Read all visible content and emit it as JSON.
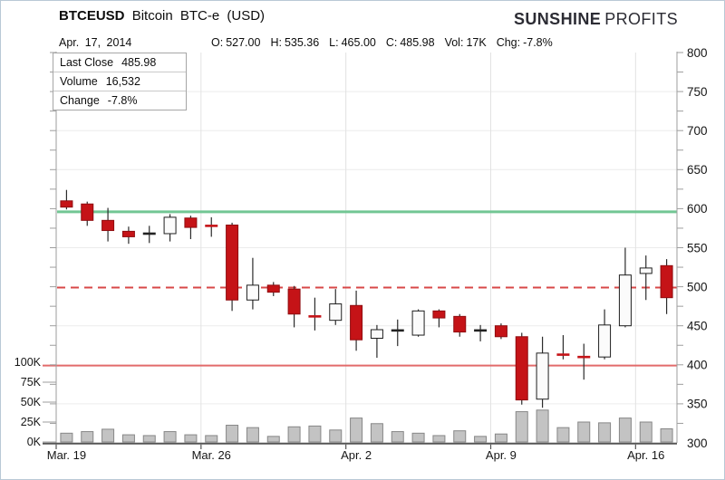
{
  "header": {
    "symbol": "BTCEUSD",
    "title_rest": "Bitcoin BTC-e (USD)",
    "brand": {
      "bold": "SUNSHINE",
      "light": "PROFITS"
    },
    "date": "Apr. 17, 2014",
    "ohlc": {
      "o_label": "O:",
      "o": "527.00",
      "h_label": "H:",
      "h": "535.36",
      "l_label": "L:",
      "l": "465.00",
      "c_label": "C:",
      "c": "485.98",
      "vol_label": "Vol:",
      "vol": "17K",
      "chg_label": "Chg:",
      "chg": "-7.8%"
    }
  },
  "info_box": {
    "rows": [
      {
        "label": "Last Close",
        "value": "485.98"
      },
      {
        "label": "Volume",
        "value": "16,532"
      },
      {
        "label": "Change",
        "value": "-7.8%"
      }
    ]
  },
  "chart_data": {
    "type": "candlestick",
    "title": "BTCEUSD Bitcoin BTC-e (USD)",
    "price_axis": {
      "min": 300,
      "max": 800,
      "label_step": 50,
      "tick_step": 25,
      "side": "right",
      "labels": [
        "800",
        "750",
        "700",
        "650",
        "600",
        "550",
        "500",
        "450",
        "400",
        "350",
        "300"
      ]
    },
    "volume_axis": {
      "side": "left",
      "labels_k": [
        100,
        75,
        50,
        25,
        0
      ],
      "unit": "K"
    },
    "x_labels": [
      "Mar. 19",
      "Mar. 26",
      "Apr. 2",
      "Apr. 9",
      "Apr. 16"
    ],
    "x_label_indices": [
      0,
      7,
      14,
      21,
      28
    ],
    "grid_indices": [
      7,
      14,
      21,
      28
    ],
    "legend": "none",
    "levels": [
      {
        "name": "resistance-line-green",
        "value": 596,
        "color": "#72c694",
        "style": "solid",
        "width": 3,
        "extends_to_axis": false
      },
      {
        "name": "support-line-dashed-red",
        "value": 499,
        "color": "#d84848",
        "style": "dashed",
        "width": 2,
        "extends_to_axis": false
      },
      {
        "name": "support-line-solid-red",
        "value": 399,
        "color": "#e26a6a",
        "style": "solid",
        "width": 2,
        "extends_to_axis": true
      }
    ],
    "colors": {
      "down_fill": "#c51317",
      "down_stroke": "#8f0d10",
      "up_fill": "#fbfbfb",
      "up_stroke": "#1f1f1f",
      "wick": "#2b2b2b",
      "doji_black": "#222222",
      "doji_red": "#c51317",
      "volume_fill": "#c3c3c3",
      "volume_stroke": "#878787",
      "grid_h": "#ececec",
      "grid_v": "#e2e2e2",
      "axis": "#555555",
      "border": "#9e9e9e",
      "text": "#161616"
    },
    "candles": [
      {
        "date": "Mar. 19",
        "open": 610,
        "high": 624,
        "low": 599,
        "close": 602,
        "type": "down",
        "volume_k": 11
      },
      {
        "date": "Mar. 20",
        "open": 606,
        "high": 609,
        "low": 578,
        "close": 585,
        "type": "down",
        "volume_k": 13
      },
      {
        "date": "Mar. 21",
        "open": 585,
        "high": 601,
        "low": 558,
        "close": 572,
        "type": "down",
        "volume_k": 16
      },
      {
        "date": "Mar. 22",
        "open": 571,
        "high": 577,
        "low": 555,
        "close": 564,
        "type": "down",
        "volume_k": 9
      },
      {
        "date": "Mar. 23",
        "open": 566,
        "high": 578,
        "low": 556,
        "close": 568,
        "type": "doji-black",
        "volume_k": 8
      },
      {
        "date": "Mar. 24",
        "open": 568,
        "high": 593,
        "low": 558,
        "close": 589,
        "type": "up",
        "volume_k": 13
      },
      {
        "date": "Mar. 25",
        "open": 588,
        "high": 591,
        "low": 561,
        "close": 576,
        "type": "down",
        "volume_k": 9
      },
      {
        "date": "Mar. 26",
        "open": 580,
        "high": 589,
        "low": 564,
        "close": 578,
        "type": "doji-red",
        "volume_k": 8
      },
      {
        "date": "Mar. 27",
        "open": 579,
        "high": 582,
        "low": 469,
        "close": 483,
        "type": "down",
        "volume_k": 21
      },
      {
        "date": "Mar. 28",
        "open": 483,
        "high": 537,
        "low": 471,
        "close": 502,
        "type": "up",
        "volume_k": 18
      },
      {
        "date": "Mar. 29",
        "open": 502,
        "high": 506,
        "low": 488,
        "close": 493,
        "type": "down",
        "volume_k": 7
      },
      {
        "date": "Mar. 30",
        "open": 497,
        "high": 501,
        "low": 448,
        "close": 465,
        "type": "down",
        "volume_k": 19
      },
      {
        "date": "Mar. 31",
        "open": 465,
        "high": 486,
        "low": 444,
        "close": 462,
        "type": "doji-red",
        "volume_k": 20
      },
      {
        "date": "Apr. 1",
        "open": 457,
        "high": 497,
        "low": 451,
        "close": 478,
        "type": "up",
        "volume_k": 15
      },
      {
        "date": "Apr. 2",
        "open": 476,
        "high": 495,
        "low": 418,
        "close": 432,
        "type": "down",
        "volume_k": 30
      },
      {
        "date": "Apr. 3",
        "open": 434,
        "high": 451,
        "low": 409,
        "close": 445,
        "type": "up",
        "volume_k": 23
      },
      {
        "date": "Apr. 4",
        "open": 446,
        "high": 458,
        "low": 424,
        "close": 444,
        "type": "doji-black",
        "volume_k": 13
      },
      {
        "date": "Apr. 5",
        "open": 438,
        "high": 471,
        "low": 436,
        "close": 469,
        "type": "up",
        "volume_k": 11
      },
      {
        "date": "Apr. 6",
        "open": 469,
        "high": 471,
        "low": 448,
        "close": 460,
        "type": "down",
        "volume_k": 8
      },
      {
        "date": "Apr. 7",
        "open": 462,
        "high": 465,
        "low": 436,
        "close": 442,
        "type": "down",
        "volume_k": 14
      },
      {
        "date": "Apr. 8",
        "open": 443,
        "high": 451,
        "low": 430,
        "close": 444,
        "type": "doji-black",
        "volume_k": 7
      },
      {
        "date": "Apr. 9",
        "open": 450,
        "high": 453,
        "low": 433,
        "close": 436,
        "type": "down",
        "volume_k": 10
      },
      {
        "date": "Apr. 10",
        "open": 436,
        "high": 441,
        "low": 349,
        "close": 355,
        "type": "down",
        "volume_k": 38
      },
      {
        "date": "Apr. 11",
        "open": 356,
        "high": 436,
        "low": 345,
        "close": 415,
        "type": "up",
        "volume_k": 40
      },
      {
        "date": "Apr. 12",
        "open": 416,
        "high": 438,
        "low": 407,
        "close": 413,
        "type": "doji-red",
        "volume_k": 18
      },
      {
        "date": "Apr. 13",
        "open": 412,
        "high": 427,
        "low": 381,
        "close": 410,
        "type": "doji-red",
        "volume_k": 25
      },
      {
        "date": "Apr. 14",
        "open": 410,
        "high": 471,
        "low": 407,
        "close": 451,
        "type": "up",
        "volume_k": 24
      },
      {
        "date": "Apr. 15",
        "open": 450,
        "high": 550,
        "low": 448,
        "close": 515,
        "type": "up",
        "volume_k": 30
      },
      {
        "date": "Apr. 16",
        "open": 517,
        "high": 540,
        "low": 483,
        "close": 524,
        "type": "up",
        "volume_k": 25
      },
      {
        "date": "Apr. 17",
        "open": 527,
        "high": 535.36,
        "low": 465,
        "close": 485.98,
        "type": "down",
        "volume_k": 16.5
      }
    ]
  }
}
